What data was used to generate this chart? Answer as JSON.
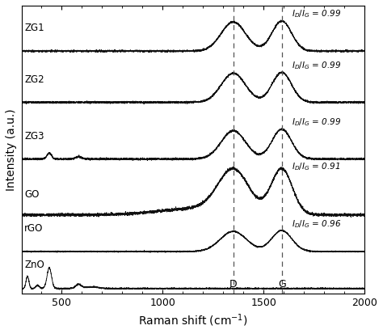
{
  "xlabel": "Raman shift (cm⁻¹)",
  "ylabel": "Intensity (a.u.)",
  "xlim": [
    300,
    2000
  ],
  "D_band": 1350,
  "G_band": 1590,
  "offsets": {
    "ZnO": 0.0,
    "rGO": 0.115,
    "GO": 0.225,
    "ZG3": 0.4,
    "ZG2": 0.575,
    "ZG1": 0.735
  },
  "scales": {
    "ZnO": 0.07,
    "rGO": 0.07,
    "GO": 0.155,
    "ZG3": 0.1,
    "ZG2": 0.1,
    "ZG1": 0.1
  },
  "noise": 0.003,
  "background_color": "#ffffff",
  "line_color": "#111111"
}
